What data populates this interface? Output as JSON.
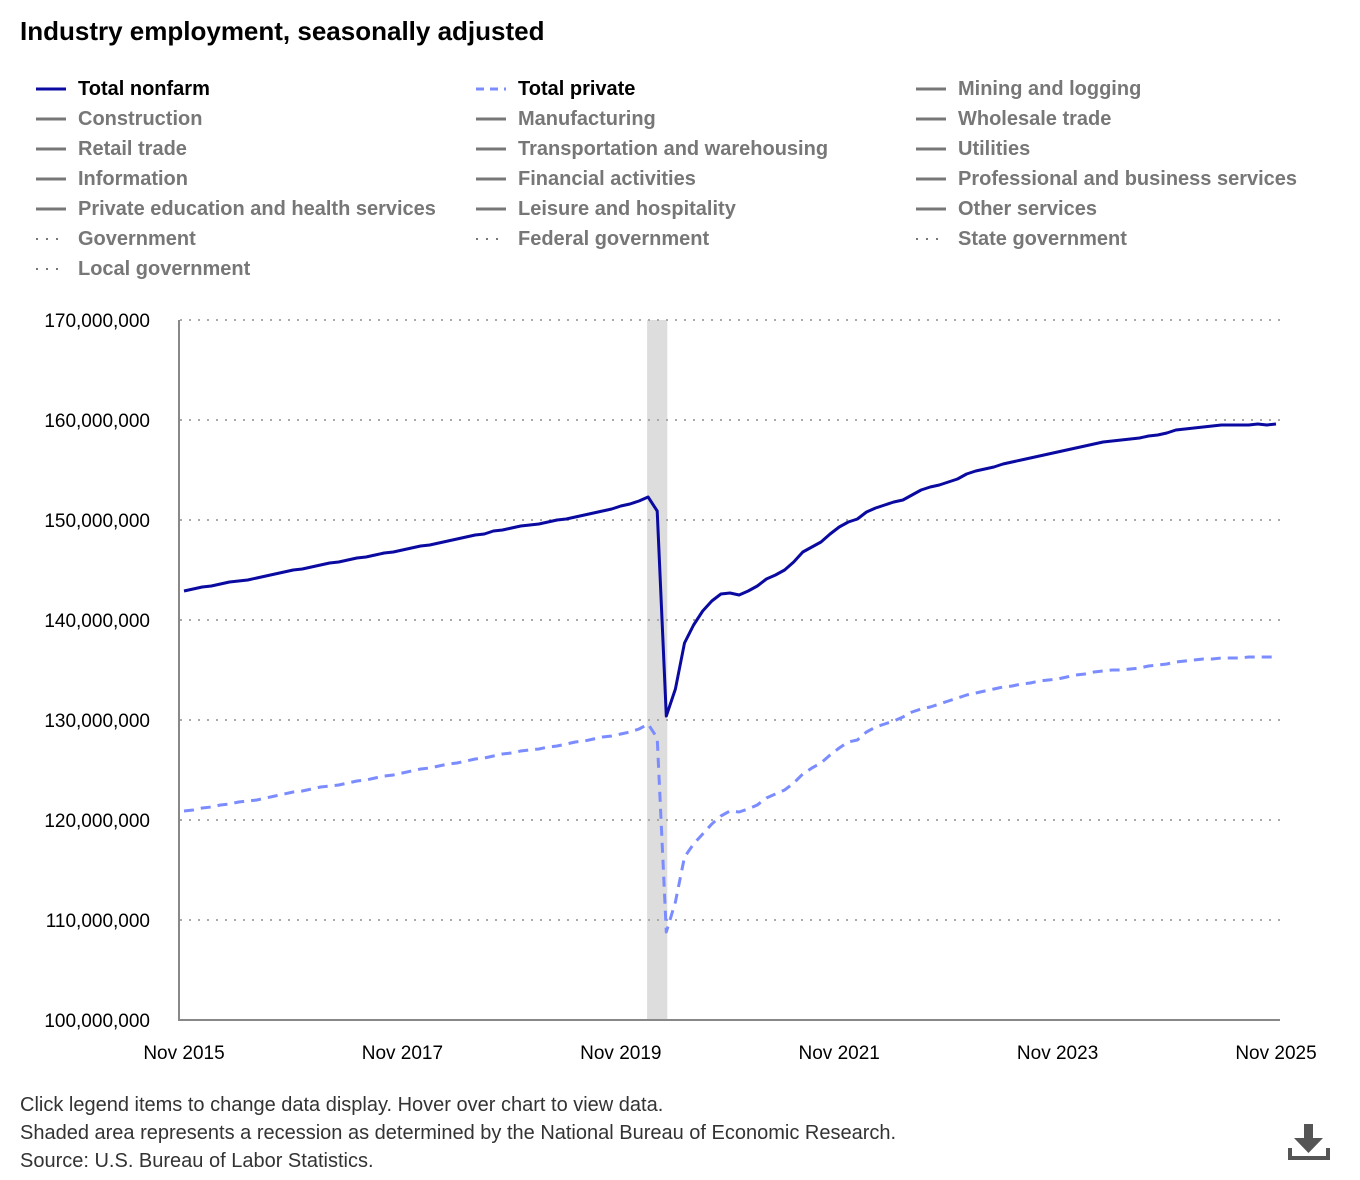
{
  "title": "Industry employment, seasonally adjusted",
  "legend": [
    {
      "label": "Total nonfarm",
      "style": "solid",
      "color": "#0a0aa0",
      "active": true
    },
    {
      "label": "Total private",
      "style": "dashed",
      "color": "#7b8cff",
      "active": true
    },
    {
      "label": "Mining and logging",
      "style": "solid",
      "color": "#777777",
      "active": false
    },
    {
      "label": "Construction",
      "style": "solid",
      "color": "#777777",
      "active": false
    },
    {
      "label": "Manufacturing",
      "style": "solid",
      "color": "#777777",
      "active": false
    },
    {
      "label": "Wholesale trade",
      "style": "solid",
      "color": "#777777",
      "active": false
    },
    {
      "label": "Retail trade",
      "style": "solid",
      "color": "#777777",
      "active": false
    },
    {
      "label": "Transportation and warehousing",
      "style": "solid",
      "color": "#777777",
      "active": false
    },
    {
      "label": "Utilities",
      "style": "solid",
      "color": "#777777",
      "active": false
    },
    {
      "label": "Information",
      "style": "solid",
      "color": "#777777",
      "active": false
    },
    {
      "label": "Financial activities",
      "style": "solid",
      "color": "#777777",
      "active": false
    },
    {
      "label": "Professional and business services",
      "style": "solid",
      "color": "#777777",
      "active": false
    },
    {
      "label": "Private education and health services",
      "style": "solid",
      "color": "#777777",
      "active": false
    },
    {
      "label": "Leisure and hospitality",
      "style": "solid",
      "color": "#777777",
      "active": false
    },
    {
      "label": "Other services",
      "style": "solid",
      "color": "#777777",
      "active": false
    },
    {
      "label": "Government",
      "style": "dotted",
      "color": "#777777",
      "active": false
    },
    {
      "label": "Federal government",
      "style": "dotted",
      "color": "#777777",
      "active": false
    },
    {
      "label": "State government",
      "style": "dotted",
      "color": "#777777",
      "active": false
    },
    {
      "label": "Local government",
      "style": "dotted",
      "color": "#777777",
      "active": false
    }
  ],
  "chart_data": {
    "type": "line",
    "title": "Industry employment, seasonally adjusted",
    "x_range": [
      "2015-11",
      "2025-11"
    ],
    "frequency": "monthly",
    "x_ticks": [
      "Nov 2015",
      "Nov 2017",
      "Nov 2019",
      "Nov 2021",
      "Nov 2023",
      "Nov 2025"
    ],
    "ylim": [
      100000000,
      170000000
    ],
    "y_ticks": [
      "100,000,000",
      "110,000,000",
      "120,000,000",
      "130,000,000",
      "140,000,000",
      "150,000,000",
      "160,000,000",
      "170,000,000"
    ],
    "grid": "horizontal dotted",
    "recession": {
      "start": "2020-02",
      "end": "2020-04",
      "color": "#dddddd"
    },
    "series": [
      {
        "name": "Total nonfarm",
        "color": "#0a0aa0",
        "style": "solid",
        "values": [
          142900000,
          143100000,
          143300000,
          143400000,
          143600000,
          143800000,
          143900000,
          144000000,
          144200000,
          144400000,
          144600000,
          144800000,
          145000000,
          145100000,
          145300000,
          145500000,
          145700000,
          145800000,
          146000000,
          146200000,
          146300000,
          146500000,
          146700000,
          146800000,
          147000000,
          147200000,
          147400000,
          147500000,
          147700000,
          147900000,
          148100000,
          148300000,
          148500000,
          148600000,
          148900000,
          149000000,
          149200000,
          149400000,
          149500000,
          149600000,
          149800000,
          150000000,
          150100000,
          150300000,
          150500000,
          150700000,
          150900000,
          151100000,
          151400000,
          151600000,
          151900000,
          152300000,
          150900000,
          130400000,
          133100000,
          137700000,
          139500000,
          140900000,
          141900000,
          142600000,
          142700000,
          142500000,
          142900000,
          143400000,
          144100000,
          144500000,
          145000000,
          145800000,
          146800000,
          147300000,
          147800000,
          148600000,
          149300000,
          149800000,
          150100000,
          150800000,
          151200000,
          151500000,
          151800000,
          152000000,
          152500000,
          153000000,
          153300000,
          153500000,
          153800000,
          154100000,
          154600000,
          154900000,
          155100000,
          155300000,
          155600000,
          155800000,
          156000000,
          156200000,
          156400000,
          156600000,
          156800000,
          157000000,
          157200000,
          157400000,
          157600000,
          157800000,
          157900000,
          158000000,
          158100000,
          158200000,
          158400000,
          158500000,
          158700000,
          159000000,
          159100000,
          159200000,
          159300000,
          159400000,
          159500000,
          159500000,
          159500000,
          159500000,
          159600000,
          159500000,
          159600000
        ]
      },
      {
        "name": "Total private",
        "color": "#7b8cff",
        "style": "dashed",
        "values": [
          120900000,
          121000000,
          121200000,
          121300000,
          121500000,
          121600000,
          121800000,
          121900000,
          122000000,
          122200000,
          122400000,
          122600000,
          122800000,
          122900000,
          123100000,
          123300000,
          123400000,
          123500000,
          123700000,
          123900000,
          124000000,
          124200000,
          124400000,
          124500000,
          124700000,
          124900000,
          125100000,
          125200000,
          125400000,
          125600000,
          125700000,
          125900000,
          126100000,
          126200000,
          126400000,
          126600000,
          126700000,
          126900000,
          127000000,
          127100000,
          127300000,
          127400000,
          127600000,
          127800000,
          127900000,
          128100000,
          128300000,
          128400000,
          128600000,
          128800000,
          129100000,
          129600000,
          128200000,
          108800000,
          111800000,
          116300000,
          117600000,
          118600000,
          119600000,
          120400000,
          120900000,
          120800000,
          121100000,
          121500000,
          122200000,
          122600000,
          123000000,
          123700000,
          124600000,
          125200000,
          125700000,
          126500000,
          127200000,
          127800000,
          128000000,
          128800000,
          129300000,
          129600000,
          129900000,
          130300000,
          130800000,
          131100000,
          131300000,
          131600000,
          131900000,
          132200000,
          132500000,
          132700000,
          132900000,
          133100000,
          133300000,
          133400000,
          133600000,
          133700000,
          133900000,
          134000000,
          134100000,
          134300000,
          134500000,
          134600000,
          134800000,
          134900000,
          135000000,
          135000000,
          135100000,
          135200000,
          135400000,
          135500000,
          135600000,
          135800000,
          135900000,
          136000000,
          136100000,
          136100000,
          136200000,
          136200000,
          136200000,
          136300000,
          136300000,
          136300000,
          136300000
        ]
      }
    ]
  },
  "notes": [
    "Click legend items to change data display. Hover over chart to view data.",
    "Shaded area represents a recession as determined by the National Bureau of Economic Research.",
    "Source: U.S. Bureau of Labor Statistics."
  ],
  "download_icon": "download-icon"
}
